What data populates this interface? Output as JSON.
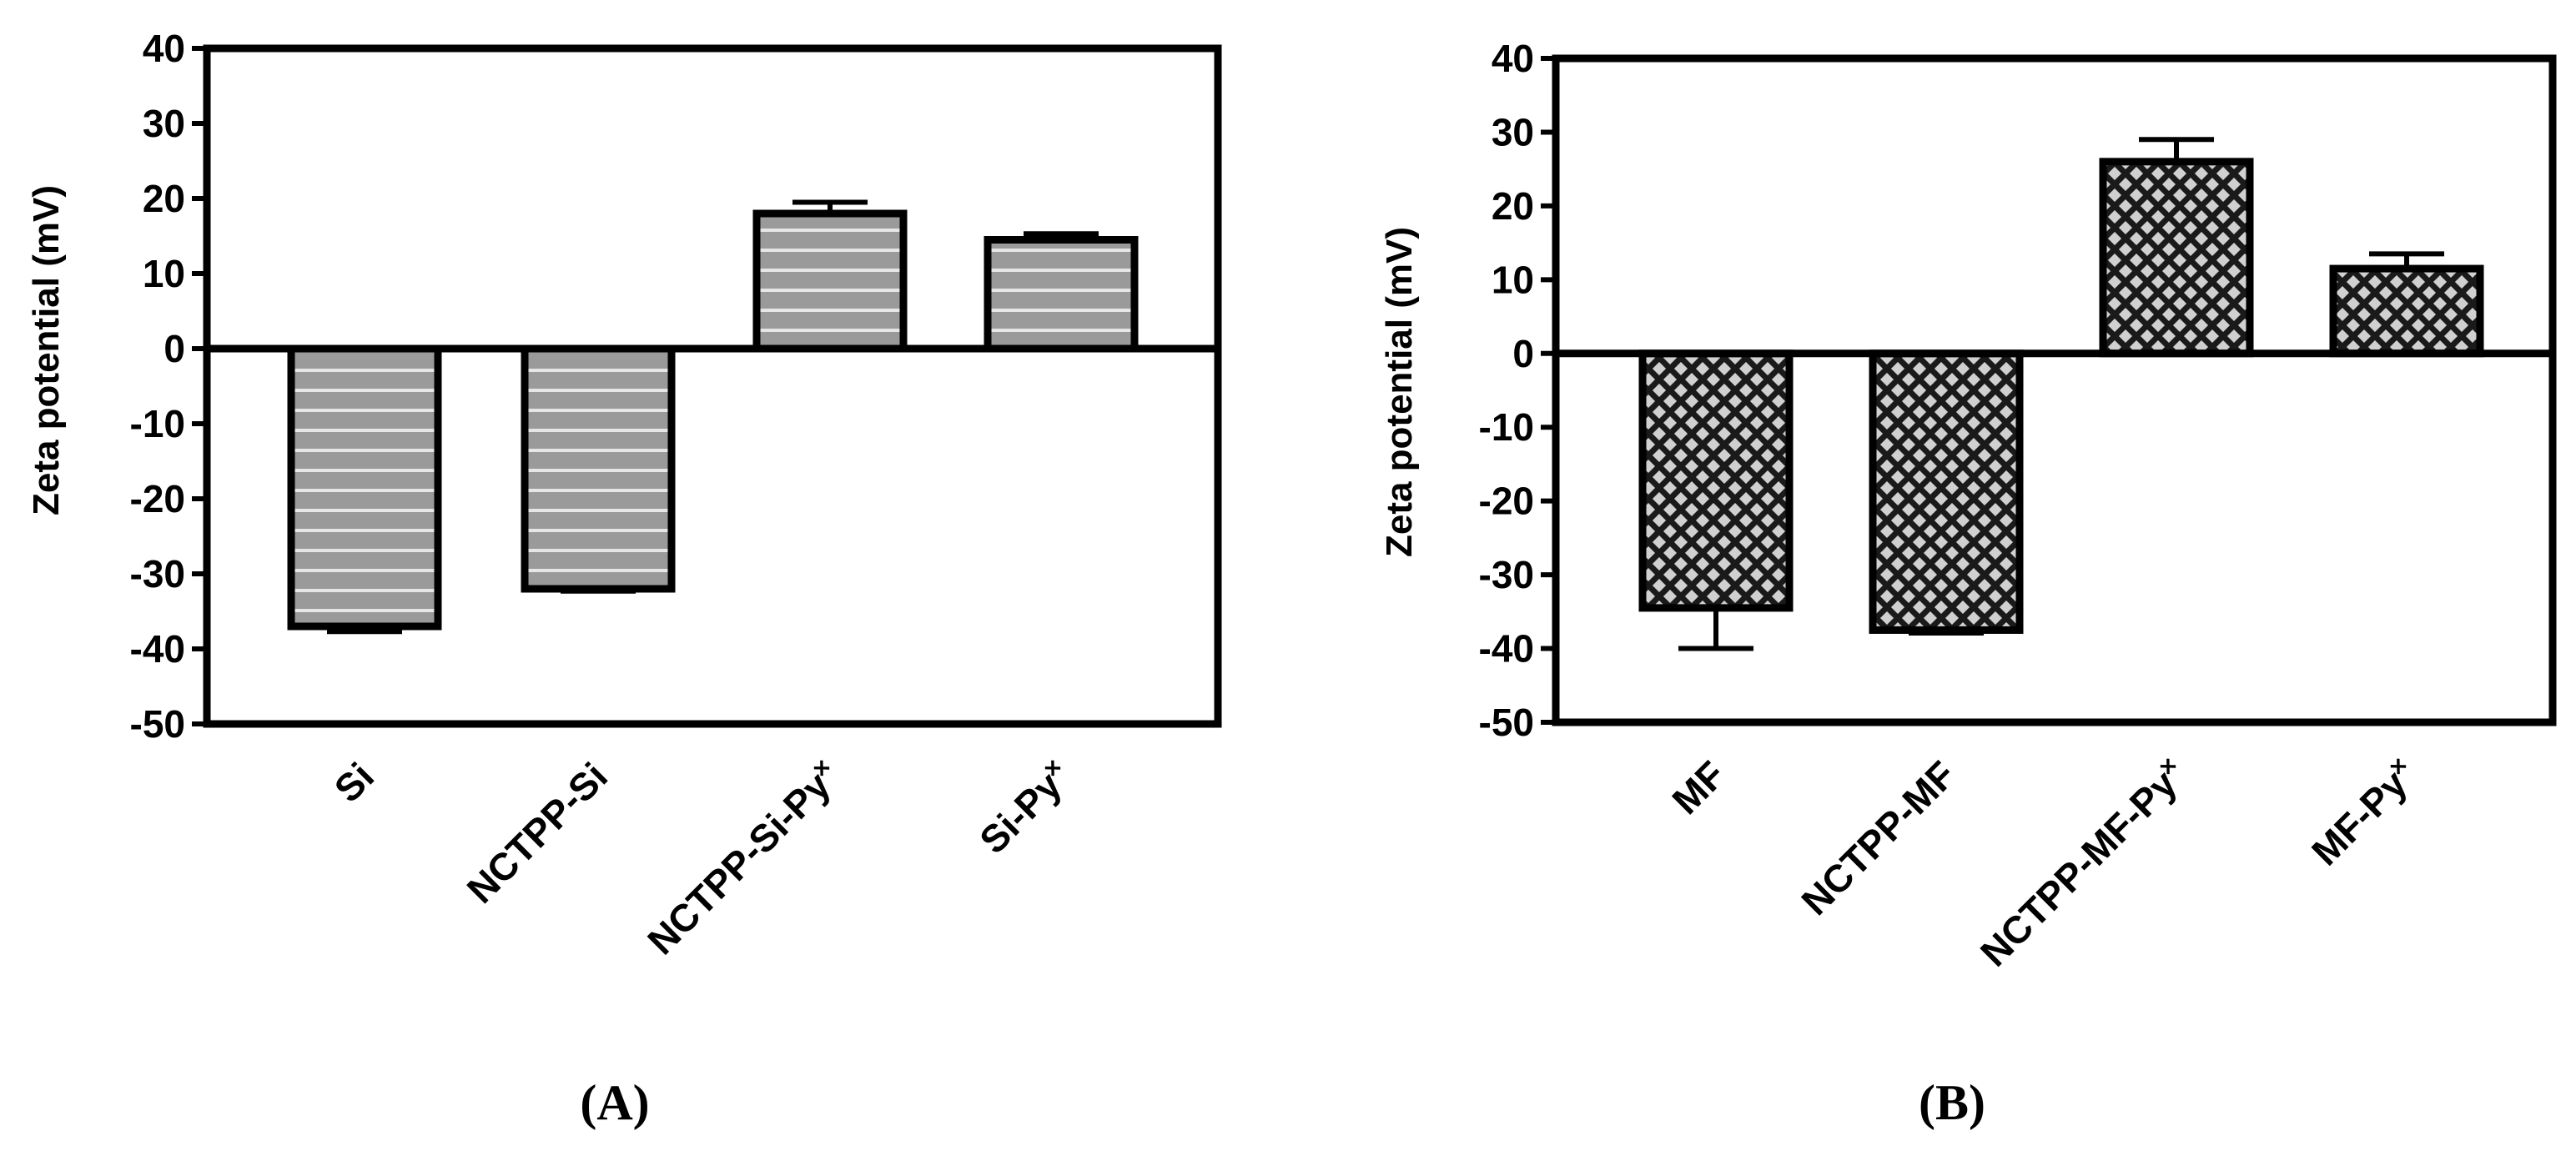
{
  "chart_data": [
    {
      "type": "bar",
      "panel": "(A)",
      "panel_letter": "A",
      "ylabel": "Zeta potential  (mV)",
      "ylim": [
        -50,
        40
      ],
      "yticks": [
        40,
        30,
        20,
        10,
        0,
        -10,
        -20,
        -30,
        -40,
        -50
      ],
      "categories": [
        "Si",
        "NCTPP-Si",
        "NCTPP-Si-Py˟",
        "Si-Py˟"
      ],
      "values": [
        -37,
        -32,
        18,
        14.5
      ],
      "errors": [
        0.7,
        0.3,
        1.5,
        0.8
      ],
      "pattern": "horizontal-stripes",
      "colors": {
        "fill": "#9a9a9a",
        "stripe": "#e6e6e6",
        "edge": "#000000"
      },
      "grid": false
    },
    {
      "type": "bar",
      "panel": "(B)",
      "panel_letter": "B",
      "ylabel": "Zeta potential  (mV)",
      "ylim": [
        -50,
        40
      ],
      "yticks": [
        40,
        30,
        20,
        10,
        0,
        -10,
        -20,
        -30,
        -40,
        -50
      ],
      "categories": [
        "MF",
        "NCTPP-MF",
        "NCTPP-MF-Py˟",
        "MF-Py˟"
      ],
      "values": [
        -34.5,
        -37.5,
        26,
        11.5
      ],
      "errors": [
        5.5,
        0.4,
        3,
        2
      ],
      "pattern": "diamond-crosshatch",
      "colors": {
        "fill": "#c8c8c8",
        "hatch": "#1a1a1a",
        "edge": "#000000"
      },
      "grid": false
    }
  ]
}
